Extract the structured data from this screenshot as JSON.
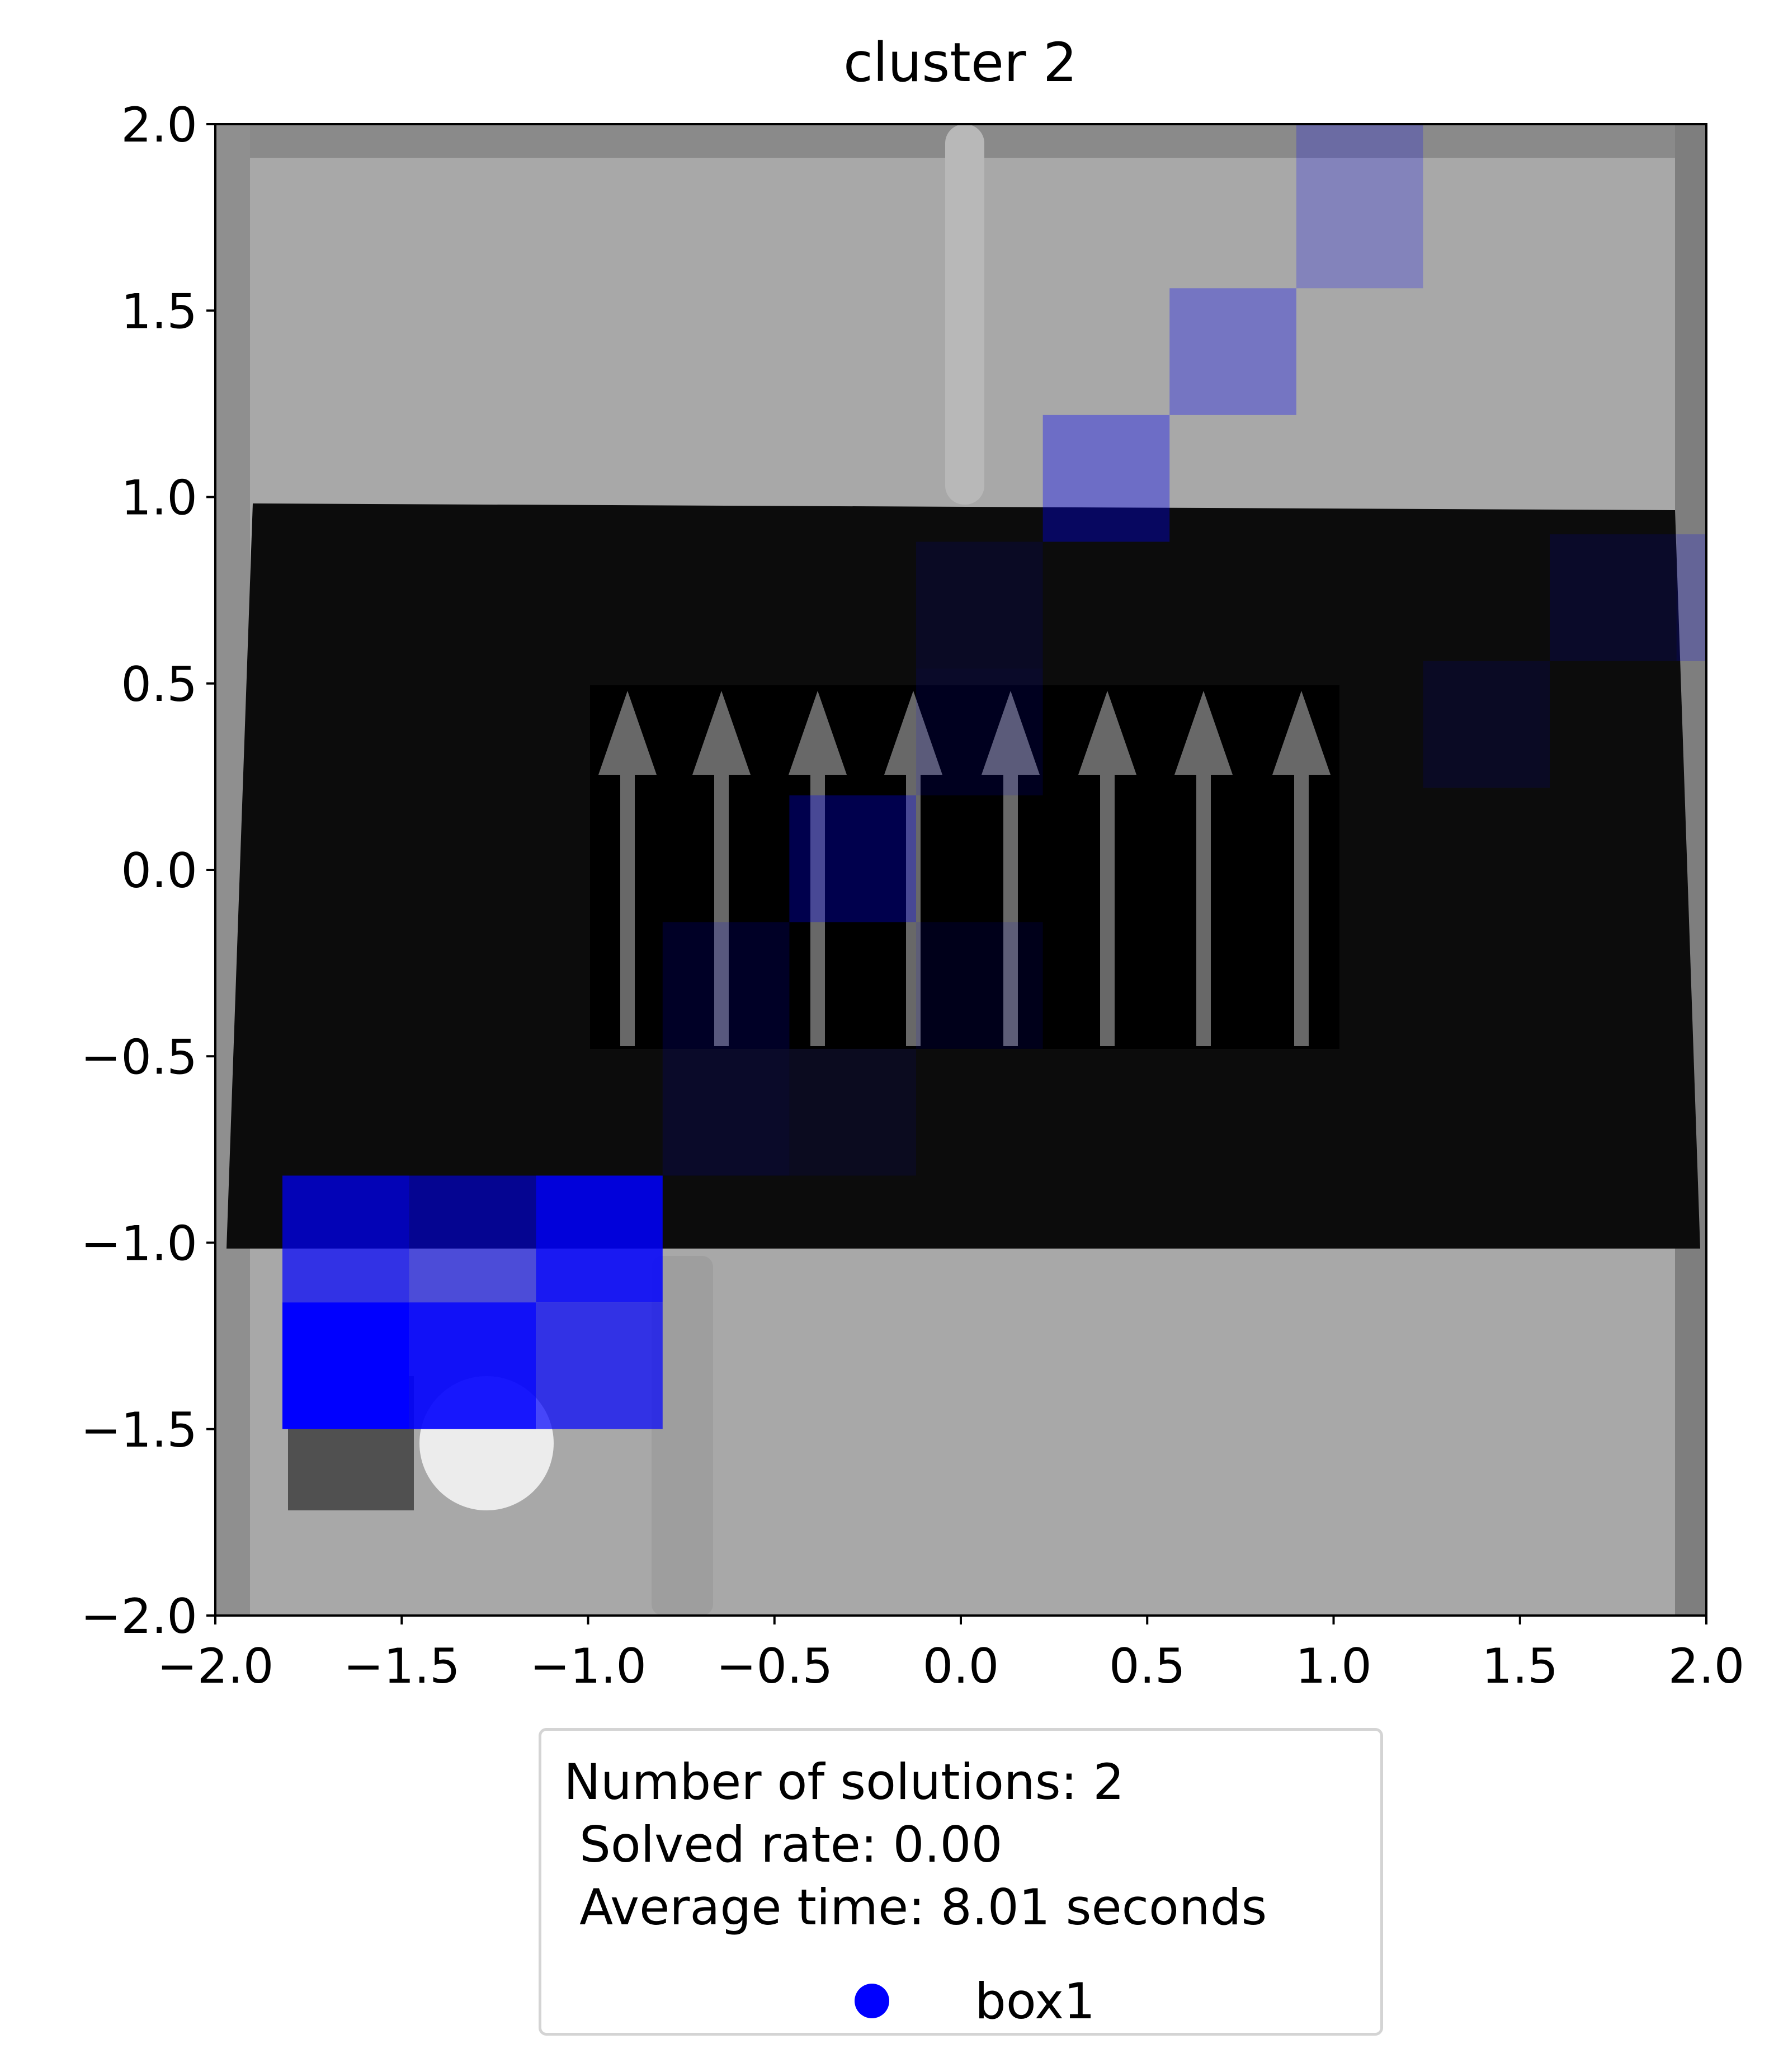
{
  "chart_data": {
    "type": "heatmap",
    "title": "cluster 2",
    "xlabel": "",
    "ylabel": "",
    "xlim": [
      -2.0,
      2.0
    ],
    "ylim": [
      -2.0,
      2.0
    ],
    "xticks": [
      "−2.0",
      "−1.5",
      "−1.0",
      "−0.5",
      "0.0",
      "0.5",
      "1.0",
      "1.5",
      "2.0"
    ],
    "yticks": [
      "2.0",
      "1.5",
      "1.0",
      "0.5",
      "0.0",
      "−0.5",
      "−1.0",
      "−1.5",
      "−2.0"
    ],
    "grid": false,
    "series": [
      {
        "name": "box1",
        "color": "#0000ff",
        "cells": [
          {
            "x": [
              -1.82,
              -1.48
            ],
            "y": [
              -1.5,
              -1.16
            ],
            "v": 1.0
          },
          {
            "x": [
              -1.48,
              -1.14
            ],
            "y": [
              -1.5,
              -1.16
            ],
            "v": 0.9
          },
          {
            "x": [
              -1.14,
              -0.8
            ],
            "y": [
              -1.5,
              -1.16
            ],
            "v": 0.7
          },
          {
            "x": [
              -1.82,
              -1.48
            ],
            "y": [
              -1.16,
              -0.82
            ],
            "v": 0.7
          },
          {
            "x": [
              -1.48,
              -1.14
            ],
            "y": [
              -1.16,
              -0.82
            ],
            "v": 0.55
          },
          {
            "x": [
              -1.14,
              -0.8
            ],
            "y": [
              -1.16,
              -0.82
            ],
            "v": 0.85
          },
          {
            "x": [
              -0.8,
              -0.46
            ],
            "y": [
              -0.82,
              -0.48
            ],
            "v": 0.12
          },
          {
            "x": [
              -0.46,
              -0.12
            ],
            "y": [
              -0.82,
              -0.48
            ],
            "v": 0.08
          },
          {
            "x": [
              -0.8,
              -0.46
            ],
            "y": [
              -0.48,
              -0.14
            ],
            "v": 0.15
          },
          {
            "x": [
              -0.12,
              0.22
            ],
            "y": [
              -0.48,
              -0.14
            ],
            "v": 0.1
          },
          {
            "x": [
              -0.46,
              -0.12
            ],
            "y": [
              -0.14,
              0.2
            ],
            "v": 0.3
          },
          {
            "x": [
              -0.12,
              0.22
            ],
            "y": [
              0.2,
              0.54
            ],
            "v": 0.12
          },
          {
            "x": [
              -0.12,
              0.22
            ],
            "y": [
              0.54,
              0.88
            ],
            "v": 0.1
          },
          {
            "x": [
              0.22,
              0.56
            ],
            "y": [
              0.88,
              1.22
            ],
            "v": 0.35
          },
          {
            "x": [
              0.56,
              0.9
            ],
            "y": [
              1.22,
              1.56
            ],
            "v": 0.3
          },
          {
            "x": [
              0.9,
              1.24
            ],
            "y": [
              1.56,
              2.0
            ],
            "v": 0.22
          },
          {
            "x": [
              1.24,
              1.58
            ],
            "y": [
              0.22,
              0.56
            ],
            "v": 0.1
          },
          {
            "x": [
              1.58,
              1.92
            ],
            "y": [
              0.56,
              0.9
            ],
            "v": 0.12
          },
          {
            "x": [
              1.92,
              2.0
            ],
            "y": [
              0.56,
              0.9
            ],
            "v": 0.2
          }
        ]
      }
    ],
    "legend_placement": "below plot",
    "legend_text": [
      "Number of solutions: 2",
      " Solved rate: 0.00",
      " Average time: 8.01 seconds"
    ]
  }
}
